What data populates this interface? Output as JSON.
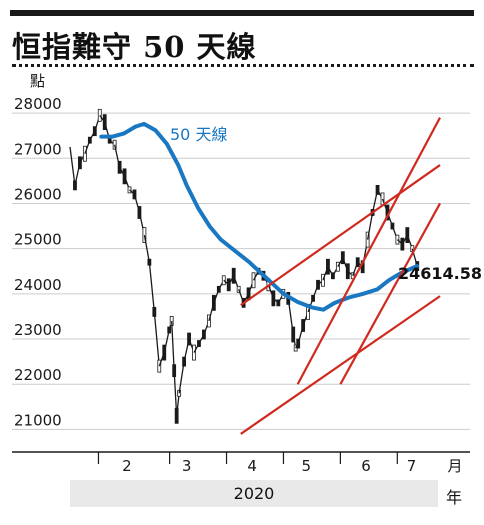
{
  "header": {
    "title": "恒指難守 50 天線",
    "unit": "點"
  },
  "colors": {
    "ma_line": "#1a78c2",
    "trend_lines": "#d02a1e",
    "candles": "#1a1a1a",
    "grid": "#cccccc",
    "year_band": "#e9e9e9"
  },
  "chart_data": {
    "type": "line",
    "title": "恒指難守 50 天線",
    "ylabel": "點",
    "xlabel": "月",
    "ylim": [
      20500,
      28400
    ],
    "yticks": [
      21000,
      22000,
      23000,
      24000,
      25000,
      26000,
      27000,
      28000
    ],
    "y_tick_labels": [
      "21000",
      "22000",
      "23000",
      "24000",
      "25000",
      "26000",
      "27000",
      "28000"
    ],
    "months": [
      "2",
      "3",
      "4",
      "5",
      "6",
      "7"
    ],
    "month_unit": "月",
    "year": "2020",
    "year_unit": "年",
    "grid": true,
    "last_close_label": "24614.58",
    "series": [
      {
        "name": "50 天線",
        "kind": "moving-average",
        "points": [
          [
            2.1,
            27480
          ],
          [
            2.5,
            27480
          ],
          [
            2.9,
            27550
          ],
          [
            3.3,
            27700
          ],
          [
            3.6,
            27760
          ],
          [
            4.0,
            27620
          ],
          [
            4.4,
            27320
          ],
          [
            4.8,
            26850
          ],
          [
            5.1,
            26400
          ],
          [
            5.5,
            25900
          ],
          [
            5.9,
            25500
          ],
          [
            6.3,
            25200
          ],
          [
            6.8,
            24950
          ],
          [
            7.3,
            24700
          ],
          [
            7.9,
            24350
          ],
          [
            8.5,
            24000
          ],
          [
            9.0,
            23820
          ],
          [
            9.5,
            23700
          ],
          [
            9.9,
            23650
          ],
          [
            10.3,
            23800
          ],
          [
            10.8,
            23920
          ],
          [
            11.3,
            24000
          ],
          [
            11.8,
            24100
          ],
          [
            12.2,
            24300
          ],
          [
            12.6,
            24450
          ],
          [
            13.0,
            24560
          ],
          [
            13.2,
            24614
          ]
        ]
      },
      {
        "name": "",
        "kind": "daily-price",
        "points": [
          [
            1.0,
            27250
          ],
          [
            1.1,
            26400
          ],
          [
            1.2,
            26900
          ],
          [
            1.3,
            27100
          ],
          [
            1.4,
            27400
          ],
          [
            1.5,
            27600
          ],
          [
            1.6,
            27950
          ],
          [
            1.7,
            27800
          ],
          [
            1.8,
            27400
          ],
          [
            1.9,
            27300
          ],
          [
            2.0,
            26800
          ],
          [
            2.1,
            26600
          ],
          [
            2.2,
            26300
          ],
          [
            2.3,
            26200
          ],
          [
            2.4,
            25800
          ],
          [
            2.5,
            25300
          ],
          [
            2.6,
            24700
          ],
          [
            2.7,
            23600
          ],
          [
            2.8,
            22400
          ],
          [
            2.9,
            22700
          ],
          [
            3.0,
            23200
          ],
          [
            3.05,
            23400
          ],
          [
            3.1,
            22300
          ],
          [
            3.15,
            21300
          ],
          [
            3.2,
            21800
          ],
          [
            3.3,
            22500
          ],
          [
            3.4,
            23000
          ],
          [
            3.5,
            22700
          ],
          [
            3.6,
            22900
          ],
          [
            3.7,
            23100
          ],
          [
            3.8,
            23400
          ],
          [
            3.9,
            23800
          ],
          [
            4.0,
            24100
          ],
          [
            4.1,
            24300
          ],
          [
            4.2,
            24200
          ],
          [
            4.3,
            24400
          ],
          [
            4.4,
            24100
          ],
          [
            4.5,
            23800
          ],
          [
            4.6,
            24000
          ],
          [
            4.7,
            24300
          ],
          [
            4.8,
            24500
          ],
          [
            4.9,
            24400
          ],
          [
            5.0,
            24200
          ],
          [
            5.1,
            23900
          ],
          [
            5.2,
            23800
          ],
          [
            5.3,
            24000
          ],
          [
            5.4,
            23900
          ],
          [
            5.5,
            23100
          ],
          [
            5.55,
            22800
          ],
          [
            5.6,
            22900
          ],
          [
            5.7,
            23300
          ],
          [
            5.8,
            23600
          ],
          [
            5.9,
            23900
          ],
          [
            6.0,
            24200
          ],
          [
            6.1,
            24300
          ],
          [
            6.2,
            24600
          ],
          [
            6.3,
            24400
          ],
          [
            6.4,
            24600
          ],
          [
            6.5,
            24800
          ],
          [
            6.6,
            24500
          ],
          [
            6.7,
            24400
          ],
          [
            6.8,
            24700
          ],
          [
            6.9,
            24600
          ],
          [
            7.0,
            25200
          ],
          [
            7.1,
            25800
          ],
          [
            7.2,
            26300
          ],
          [
            7.3,
            26100
          ],
          [
            7.4,
            25800
          ],
          [
            7.5,
            25500
          ],
          [
            7.6,
            25200
          ],
          [
            7.7,
            25100
          ],
          [
            7.8,
            25300
          ],
          [
            7.9,
            25000
          ],
          [
            8.0,
            24614
          ]
        ]
      }
    ]
  }
}
